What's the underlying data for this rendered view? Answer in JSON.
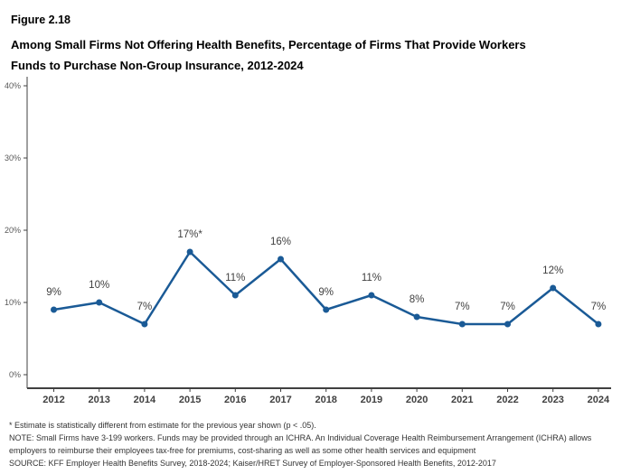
{
  "figure": {
    "number": "Figure 2.18",
    "title_line1": "Among Small Firms Not Offering Health Benefits, Percentage of Firms That Provide Workers",
    "title_line2": "Funds to Purchase Non-Group Insurance, 2012-2024"
  },
  "chart_data": {
    "type": "line",
    "categories": [
      "2012",
      "2013",
      "2014",
      "2015",
      "2016",
      "2017",
      "2018",
      "2019",
      "2020",
      "2021",
      "2022",
      "2023",
      "2024"
    ],
    "values": [
      9,
      10,
      7,
      17,
      11,
      16,
      9,
      11,
      8,
      7,
      7,
      12,
      7
    ],
    "point_labels": [
      "9%",
      "10%",
      "7%",
      "17%*",
      "11%",
      "16%",
      "9%",
      "11%",
      "8%",
      "7%",
      "7%",
      "12%",
      "7%"
    ],
    "title": "Among Small Firms Not Offering Health Benefits, Percentage of Firms That Provide Workers Funds to Purchase Non-Group Insurance, 2012-2024",
    "xlabel": "",
    "ylabel": "",
    "ylim": [
      0,
      40
    ],
    "ytick_labels": [
      "0%",
      "10%",
      "20%",
      "30%",
      "40%"
    ],
    "grid": false,
    "legend": "none",
    "line_color": "#1A5A96",
    "label_color": "#404040",
    "axis_color": "#404040",
    "ytick_color": "#595959"
  },
  "footnotes": {
    "asterisk": "* Estimate is statistically different from estimate for the previous year shown (p < .05).",
    "note_line1": "NOTE: Small Firms have 3-199 workers. Funds may be provided through an ICHRA. An Individual Coverage Health Reimbursement Arrangement (ICHRA) allows",
    "note_line2": "employers to reimburse their employees tax-free for premiums, cost-sharing as well as some other health services and equipment",
    "source": "SOURCE: KFF Employer Health Benefits Survey, 2018-2024; Kaiser/HRET Survey of Employer-Sponsored Health Benefits, 2012-2017"
  }
}
